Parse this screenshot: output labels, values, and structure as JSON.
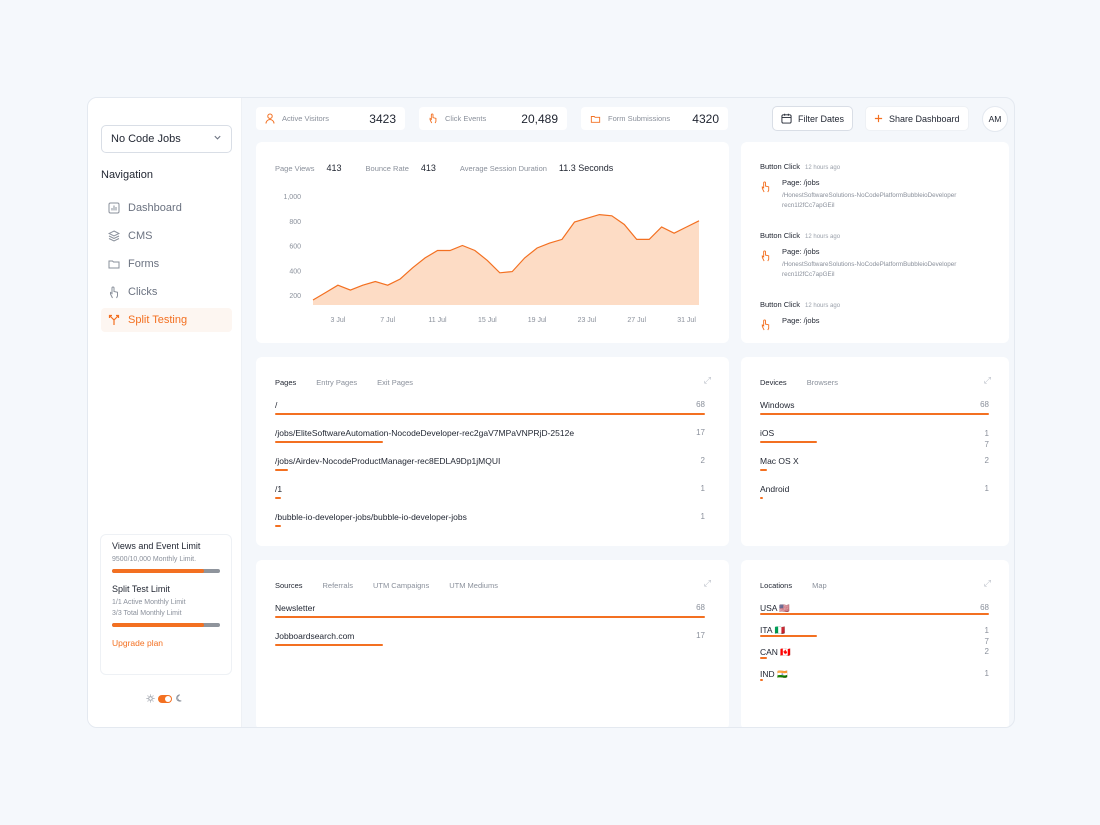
{
  "workspace": {
    "name": "No Code Jobs"
  },
  "sidebar": {
    "nav_title": "Navigation",
    "items": [
      {
        "label": "Dashboard",
        "icon": "chart-bar-icon"
      },
      {
        "label": "CMS",
        "icon": "layers-icon"
      },
      {
        "label": "Forms",
        "icon": "folder-icon"
      },
      {
        "label": "Clicks",
        "icon": "hand-click-icon"
      },
      {
        "label": "Split Testing",
        "icon": "split-arrows-icon",
        "active": true
      }
    ],
    "limits": {
      "views_title": "Views and Event Limit",
      "views_sub": "9500/10,000 Monthly Limit.",
      "views_progress": 0.85,
      "split_title": "Split Test Limit",
      "split_sub1": "1/1 Active Monthly Limit",
      "split_sub2": "3/3 Total Monthly Limit",
      "split_progress": 0.85,
      "upgrade": "Upgrade plan"
    }
  },
  "kpis": [
    {
      "label": "Active Visitors",
      "value": "3423",
      "icon": "user-icon"
    },
    {
      "label": "Click Events",
      "value": "20,489",
      "icon": "hand-click-icon"
    },
    {
      "label": "Form Submissions",
      "value": "4320",
      "icon": "folder-icon"
    }
  ],
  "header": {
    "filter_label": "Filter Dates",
    "share_label": "Share Dashboard",
    "avatar": "AM"
  },
  "overview": {
    "page_views_label": "Page Views",
    "page_views": "413",
    "bounce_label": "Bounce Rate",
    "bounce": "413",
    "session_label": "Average Session Duration",
    "session": "11.3 Seconds"
  },
  "chart_data": {
    "type": "area",
    "x": [
      "1 Jul",
      "2 Jul",
      "3 Jul",
      "4 Jul",
      "5 Jul",
      "6 Jul",
      "7 Jul",
      "8 Jul",
      "9 Jul",
      "10 Jul",
      "11 Jul",
      "12 Jul",
      "13 Jul",
      "14 Jul",
      "15 Jul",
      "16 Jul",
      "17 Jul",
      "18 Jul",
      "19 Jul",
      "20 Jul",
      "21 Jul",
      "22 Jul",
      "23 Jul",
      "24 Jul",
      "25 Jul",
      "26 Jul",
      "27 Jul",
      "28 Jul",
      "29 Jul",
      "30 Jul",
      "31 Jul",
      "1 Aug"
    ],
    "values": [
      160,
      220,
      280,
      240,
      280,
      310,
      280,
      330,
      420,
      500,
      560,
      560,
      600,
      560,
      480,
      380,
      390,
      500,
      580,
      620,
      650,
      790,
      820,
      850,
      840,
      770,
      650,
      650,
      750,
      700,
      750,
      800
    ],
    "tick_labels": [
      "3 Jul",
      "7 Jul",
      "11 Jul",
      "15 Jul",
      "19 Jul",
      "23 Jul",
      "27 Jul",
      "31 Jul"
    ],
    "y_ticks": [
      "1,000",
      "800",
      "600",
      "400",
      "200"
    ],
    "ylim": [
      120,
      1000
    ],
    "color": "#f37021",
    "fill": "#fddcc5",
    "grid": false
  },
  "activity": [
    {
      "event": "Button Click",
      "time": "12 hours ago",
      "page": "Page: /jobs",
      "path": "/HonestSoftwareSolutions-NoCodePlatformBubbleioDeveloper",
      "rec": "recn1l2fCc7apGEil"
    },
    {
      "event": "Button Click",
      "time": "12 hours ago",
      "page": "Page: /jobs",
      "path": "/HonestSoftwareSolutions-NoCodePlatformBubbleioDeveloper",
      "rec": "recn1l2fCc7apGEil"
    },
    {
      "event": "Button Click",
      "time": "12 hours ago",
      "page": "Page: /jobs",
      "path": "",
      "rec": ""
    }
  ],
  "pages": {
    "tabs": [
      "Pages",
      "Entry Pages",
      "Exit Pages"
    ],
    "rows": [
      {
        "label": "/",
        "value": "68",
        "ratio": 1.0
      },
      {
        "label": "/jobs/EliteSoftwareAutomation-NocodeDeveloper-rec2gaV7MPaVNPRjD-2512e",
        "value": "17",
        "ratio": 0.25
      },
      {
        "label": "/jobs/Airdev-NocodeProductManager-rec8EDLA9Dp1jMQUI",
        "value": "2",
        "ratio": 0.03
      },
      {
        "label": "/1",
        "value": "1",
        "ratio": 0.015
      },
      {
        "label": "/bubble-io-developer-jobs/bubble-io-developer-jobs",
        "value": "1",
        "ratio": 0.015
      }
    ]
  },
  "devices": {
    "tabs": [
      "Devices",
      "Browsers"
    ],
    "rows": [
      {
        "label": "Windows",
        "value": "68",
        "ratio": 1.0
      },
      {
        "label": "iOS",
        "value": "1\n7",
        "ratio": 0.25
      },
      {
        "label": "Mac OS X",
        "value": "2",
        "ratio": 0.03
      },
      {
        "label": "Android",
        "value": "1",
        "ratio": 0.015
      }
    ]
  },
  "sources": {
    "tabs": [
      "Sources",
      "Referrals",
      "UTM Campaigns",
      "UTM Mediums"
    ],
    "rows": [
      {
        "label": "Newsletter",
        "value": "68",
        "ratio": 1.0
      },
      {
        "label": "Jobboardsearch.com",
        "value": "17",
        "ratio": 0.25
      }
    ]
  },
  "locations": {
    "tabs": [
      "Locations",
      "Map"
    ],
    "rows": [
      {
        "label": "USA 🇺🇸",
        "value": "68",
        "ratio": 1.0
      },
      {
        "label": "ITA 🇮🇹",
        "value": "1\n7",
        "ratio": 0.25
      },
      {
        "label": "CAN 🇨🇦",
        "value": "2",
        "ratio": 0.03
      },
      {
        "label": "IND 🇮🇳",
        "value": "1",
        "ratio": 0.015
      }
    ]
  }
}
